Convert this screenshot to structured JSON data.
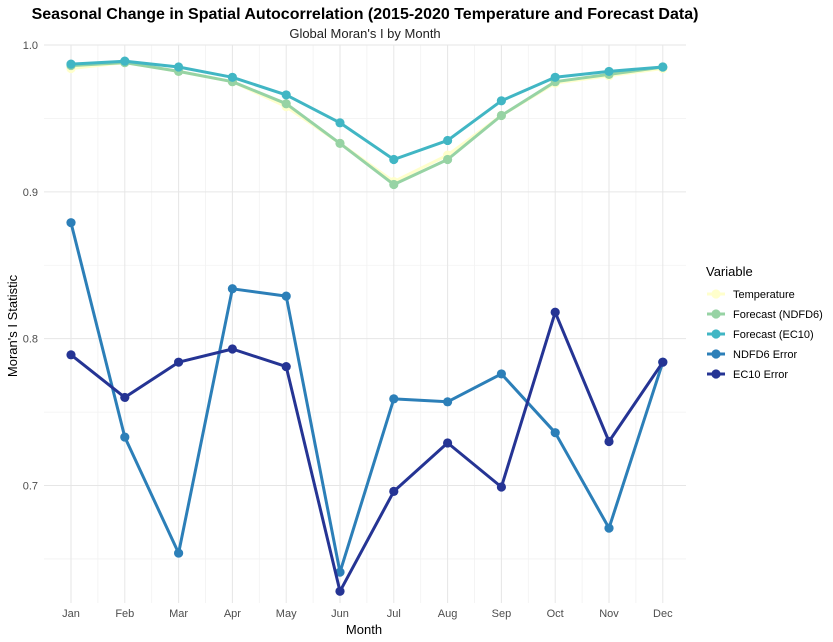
{
  "chart_data": {
    "type": "line",
    "title": "Seasonal Change in Spatial Autocorrelation (2015-2020 Temperature and Forecast Data)",
    "subtitle": "Global Moran's I by Month",
    "xlabel": "Month",
    "ylabel": "Moran's I Statistic",
    "categories": [
      "Jan",
      "Feb",
      "Mar",
      "Apr",
      "May",
      "Jun",
      "Jul",
      "Aug",
      "Sep",
      "Oct",
      "Nov",
      "Dec"
    ],
    "ylim": [
      0.62,
      1.0
    ],
    "yticks": [
      0.7,
      0.8,
      0.9,
      1.0
    ],
    "ytick_labels": [
      "0.7",
      "0.8",
      "0.9",
      "1.0"
    ],
    "grid": true,
    "legend": {
      "title": "Variable",
      "position": "right"
    },
    "series": [
      {
        "name": "Temperature",
        "color": "#ffffcc",
        "values": [
          0.984,
          0.988,
          0.982,
          0.975,
          0.958,
          0.933,
          0.907,
          0.925,
          0.952,
          0.974,
          0.979,
          0.984
        ]
      },
      {
        "name": "Forecast (NDFD6)",
        "color": "#97d3a4",
        "values": [
          0.986,
          0.988,
          0.982,
          0.975,
          0.96,
          0.933,
          0.905,
          0.922,
          0.952,
          0.975,
          0.98,
          0.985
        ]
      },
      {
        "name": "Forecast (EC10)",
        "color": "#41b6c4",
        "values": [
          0.987,
          0.989,
          0.985,
          0.978,
          0.966,
          0.947,
          0.922,
          0.935,
          0.962,
          0.978,
          0.982,
          0.985
        ]
      },
      {
        "name": "NDFD6 Error",
        "color": "#2c7fb8",
        "values": [
          0.879,
          0.733,
          0.654,
          0.834,
          0.829,
          0.641,
          0.759,
          0.757,
          0.776,
          0.736,
          0.671,
          0.784
        ]
      },
      {
        "name": "EC10 Error",
        "color": "#253494",
        "values": [
          0.789,
          0.76,
          0.784,
          0.793,
          0.781,
          0.628,
          0.696,
          0.729,
          0.699,
          0.818,
          0.73,
          0.784
        ]
      }
    ]
  }
}
